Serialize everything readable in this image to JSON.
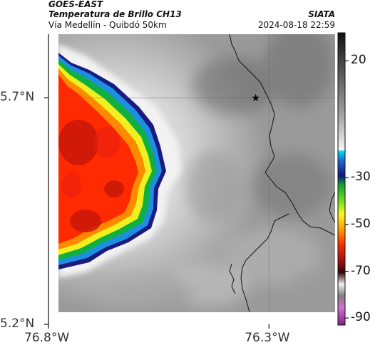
{
  "header": {
    "satellite": "GOES-EAST",
    "product": "Temperatura de Brillo CH13",
    "location": "Vía Medellín - Quibdó 50km",
    "agency": "SIATA",
    "datetime": "2024-08-18 22:59"
  },
  "map": {
    "lon_range": [
      -76.8,
      -76.15
    ],
    "lat_range": [
      5.2,
      5.84
    ],
    "lat_ticks": [
      {
        "value": 5.7,
        "label": "5.7°N"
      },
      {
        "value": 5.2,
        "label": "5.2°N"
      }
    ],
    "lon_ticks": [
      {
        "value": -76.8,
        "label": "76.8°W"
      },
      {
        "value": -76.3,
        "label": "76.3°W"
      }
    ],
    "marker": {
      "symbol": "star",
      "lon": -76.33,
      "lat": 5.7
    },
    "grid": true
  },
  "colorbar": {
    "range": [
      -93,
      32
    ],
    "ticks": [
      {
        "value": 20,
        "label": "20"
      },
      {
        "value": -30,
        "label": "-30"
      },
      {
        "value": -50,
        "label": "-50"
      },
      {
        "value": -70,
        "label": "-70"
      },
      {
        "value": -90,
        "label": "-90"
      }
    ],
    "colors": {
      "cyan": "#00d0e8",
      "blue": "#1030c0",
      "green": "#20c020",
      "yellow": "#f0f020",
      "orange": "#ff8000",
      "red": "#ff2000",
      "darkred": "#a01010",
      "magenta": "#c030c0"
    }
  }
}
